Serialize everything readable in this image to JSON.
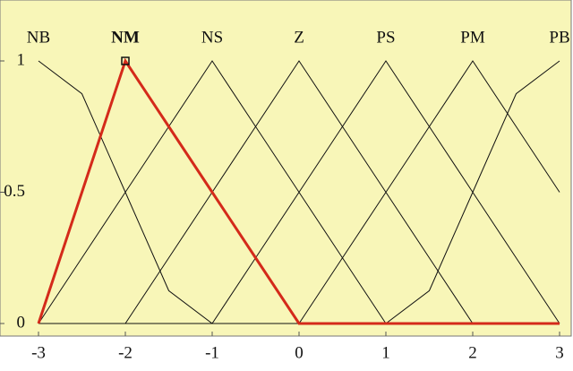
{
  "chart_data": {
    "type": "line",
    "x": [
      -3,
      -2.5,
      -2,
      -1.5,
      -1,
      -0.5,
      0,
      0.5,
      1,
      1.5,
      2,
      2.5,
      3
    ],
    "series": [
      {
        "name": "NB",
        "color": "#111111",
        "line_width": 1,
        "values": [
          1,
          0.875,
          0.5,
          0.125,
          0,
          0,
          0,
          0,
          0,
          0,
          0,
          0,
          0
        ]
      },
      {
        "name": "NS",
        "color": "#111111",
        "line_width": 1,
        "values": [
          0,
          0.25,
          0.5,
          0.75,
          1,
          0.75,
          0.5,
          0.25,
          0,
          0,
          0,
          0,
          0
        ]
      },
      {
        "name": "Z",
        "color": "#111111",
        "line_width": 1,
        "values": [
          0,
          0,
          0,
          0.25,
          0.5,
          0.75,
          1,
          0.75,
          0.5,
          0.25,
          0,
          0,
          0
        ]
      },
      {
        "name": "PS",
        "color": "#111111",
        "line_width": 1,
        "values": [
          0,
          0,
          0,
          0,
          0,
          0.25,
          0.5,
          0.75,
          1,
          0.75,
          0.5,
          0.25,
          0
        ]
      },
      {
        "name": "PM",
        "color": "#111111",
        "line_width": 1,
        "values": [
          0,
          0,
          0,
          0,
          0,
          0,
          0,
          0.25,
          0.5,
          0.75,
          1,
          0.75,
          0.5
        ]
      },
      {
        "name": "PB",
        "color": "#111111",
        "line_width": 1,
        "values": [
          0,
          0,
          0,
          0,
          0,
          0,
          0,
          0,
          0,
          0.125,
          0.5,
          0.875,
          1
        ]
      },
      {
        "name": "NM",
        "color": "#d42a1a",
        "line_width": 3,
        "values": [
          0,
          0.5,
          1,
          0.75,
          0.5,
          0.25,
          0,
          0,
          0,
          0,
          0,
          0,
          0
        ]
      }
    ],
    "xlim": [
      -3,
      3
    ],
    "xticks": [
      -3,
      -2,
      -1,
      0,
      1,
      2,
      3
    ],
    "ylim": [
      0,
      1
    ],
    "yticks": [
      0,
      0.5,
      1
    ]
  }
}
